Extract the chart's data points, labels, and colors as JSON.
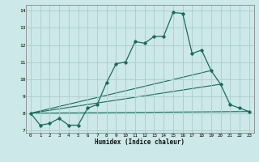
{
  "xlabel": "Humidex (Indice chaleur)",
  "background_color": "#cce8e8",
  "grid_color": "#aacccc",
  "line_color": "#1a6b5a",
  "xlim": [
    -0.5,
    23.5
  ],
  "ylim": [
    6.85,
    14.35
  ],
  "yticks": [
    7,
    8,
    9,
    10,
    11,
    12,
    13,
    14
  ],
  "xticks": [
    0,
    1,
    2,
    3,
    4,
    5,
    6,
    7,
    8,
    9,
    10,
    11,
    12,
    13,
    14,
    15,
    16,
    17,
    18,
    19,
    20,
    21,
    22,
    23
  ],
  "series1_x": [
    0,
    1,
    2,
    3,
    4,
    5,
    6,
    7,
    8,
    9,
    10,
    11,
    12,
    13,
    14,
    15,
    16,
    17,
    18,
    19,
    20,
    21,
    22,
    23
  ],
  "series1_y": [
    8.0,
    7.3,
    7.4,
    7.7,
    7.3,
    7.3,
    8.3,
    8.5,
    9.8,
    10.9,
    11.0,
    12.2,
    12.1,
    12.5,
    12.5,
    13.9,
    13.85,
    11.5,
    11.7,
    10.5,
    9.7,
    8.5,
    8.3,
    8.1
  ],
  "series2_x": [
    0,
    23
  ],
  "series2_y": [
    8.0,
    8.1
  ],
  "series3_x": [
    0,
    20
  ],
  "series3_y": [
    8.0,
    9.7
  ],
  "series4_x": [
    0,
    19
  ],
  "series4_y": [
    8.0,
    10.5
  ]
}
